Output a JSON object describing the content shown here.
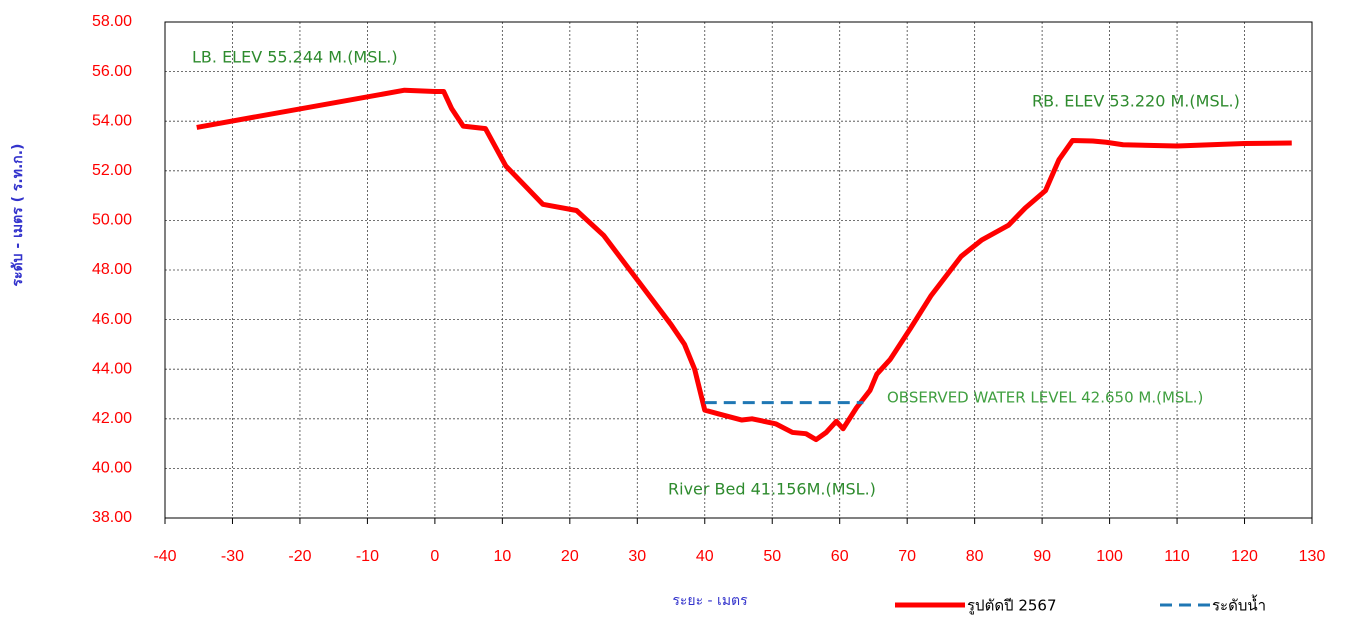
{
  "chart_data": {
    "type": "line",
    "x_label": "ระยะ - เมตร",
    "y_label": "ระดับ - เมตร ( ร.ท.ก.)",
    "annotations": [
      "LB. ELEV 55.244 M.(MSL.)",
      "RB. ELEV  53.220 M.(MSL.)",
      "OBSERVED WATER LEVEL 42.650   M.(MSL.)",
      "River  Bed  41.156M.(MSL.)"
    ],
    "xlim": [
      -40,
      130
    ],
    "ylim": [
      38,
      58
    ],
    "xticks": [
      -40,
      -30,
      -20,
      -10,
      0,
      10,
      20,
      30,
      40,
      50,
      60,
      70,
      80,
      90,
      100,
      110,
      120,
      130
    ],
    "yticks": [
      {
        "value": 38,
        "label": "38.00"
      },
      {
        "value": 40,
        "label": "40.00"
      },
      {
        "value": 42,
        "label": "42.00"
      },
      {
        "value": 44,
        "label": "44.00"
      },
      {
        "value": 46,
        "label": "46.00"
      },
      {
        "value": 48,
        "label": "48.00"
      },
      {
        "value": 50,
        "label": "50.00"
      },
      {
        "value": 52,
        "label": "52.00"
      },
      {
        "value": 54,
        "label": "54.00"
      },
      {
        "value": 56,
        "label": "56.00"
      },
      {
        "value": 58,
        "label": "58.00"
      }
    ],
    "grid": true,
    "series": [
      {
        "name": "รูปตัดปี 2567",
        "color": "#ff0000",
        "dashed": false,
        "x": [
          -35.3,
          -4.5,
          0,
          1.3,
          2.5,
          4.2,
          7.5,
          10.5,
          16,
          21,
          25,
          30,
          35,
          37,
          38.5,
          40,
          42,
          45.5,
          47,
          50.5,
          53,
          55,
          56.5,
          58,
          59.5,
          60.5,
          62.5,
          64.5,
          65.5,
          67.5,
          70.5,
          73.5,
          78,
          81,
          85,
          87.5,
          90.5,
          92.5,
          94.5,
          97.5,
          99.5,
          102,
          110,
          120,
          127
        ],
        "values": [
          53.75,
          55.25,
          55.2,
          55.2,
          54.5,
          53.8,
          53.7,
          52.2,
          50.65,
          50.4,
          49.4,
          47.6,
          45.8,
          45.0,
          44.0,
          42.35,
          42.2,
          41.95,
          42.0,
          41.8,
          41.45,
          41.4,
          41.16,
          41.45,
          41.9,
          41.6,
          42.45,
          43.15,
          43.8,
          44.4,
          45.65,
          46.95,
          48.55,
          49.2,
          49.8,
          50.5,
          51.2,
          52.45,
          53.22,
          53.2,
          53.15,
          53.05,
          53.0,
          53.1,
          53.12
        ]
      },
      {
        "name": "ระดับน้ำ",
        "color": "#1f77b4",
        "dashed": true,
        "x": [
          40,
          63.5
        ],
        "values": [
          42.65,
          42.65
        ]
      }
    ]
  }
}
